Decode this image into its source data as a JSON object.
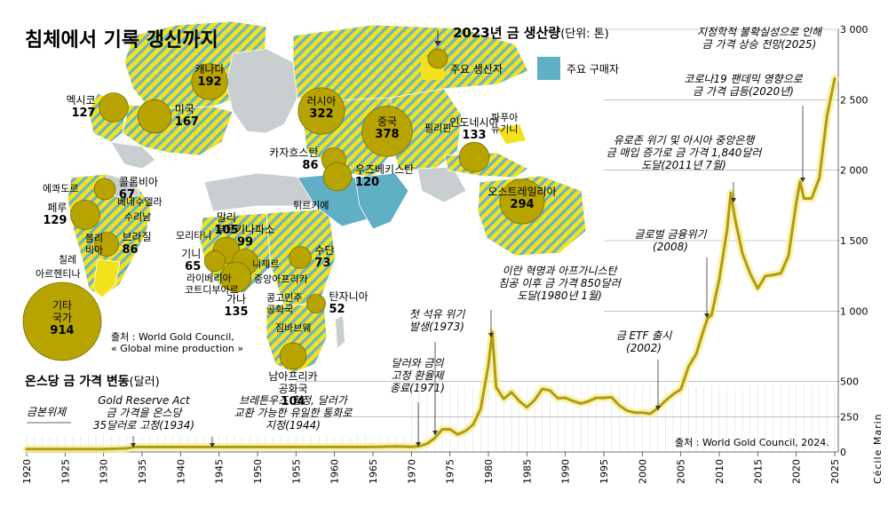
{
  "map": {
    "title": "침체에서 기록 갱신까지",
    "legend": {
      "title": "2023년 금 생산량",
      "unit": "(단위: 톤)",
      "producers": "주요 생산자",
      "buyers": "주요 구매자",
      "colors": {
        "producer": "#f2e21c",
        "producer_stripe": "#6ab3c7",
        "buyer": "#5fb0c4",
        "land": "#c9ced1",
        "bubble": "#b8a400"
      }
    },
    "source": "출처 : World Gold Council,\n« Global mine production »",
    "producers": [
      {
        "name": "캐나다",
        "value": "192"
      },
      {
        "name": "멕시코",
        "value": "127"
      },
      {
        "name": "미국",
        "value": "167"
      },
      {
        "name": "러시아",
        "value": "322"
      },
      {
        "name": "중국",
        "value": "378"
      },
      {
        "name": "카자흐스탄",
        "value": "86"
      },
      {
        "name": "우즈베키스탄",
        "value": "120"
      },
      {
        "name": "인도네시아",
        "value": "133"
      },
      {
        "name": "오스트레일리아",
        "value": "294"
      },
      {
        "name": "콜롬비아",
        "value": "67"
      },
      {
        "name": "페루",
        "value": "129"
      },
      {
        "name": "브라질",
        "value": "86"
      },
      {
        "name": "말리",
        "value": "105"
      },
      {
        "name": "부르키나파소",
        "value": "99"
      },
      {
        "name": "기니",
        "value": "65"
      },
      {
        "name": "가나",
        "value": "135"
      },
      {
        "name": "수단",
        "value": "73"
      },
      {
        "name": "탄자니아",
        "value": "52"
      },
      {
        "name": "남아프리카\n공화국",
        "value": "104"
      },
      {
        "name": "기타\n국가",
        "value": "914"
      }
    ],
    "other_labels": [
      "필리핀",
      "파푸아\n뉴기니",
      "튀르키예",
      "에콰도르",
      "베네수엘라",
      "수리남",
      "볼리\n비아",
      "칠레",
      "아르헨티나",
      "모리타니",
      "니제르",
      "라이베리아",
      "코트디부아르",
      "중앙아프리카",
      "콩고민주\n공화국",
      "짐바브웨"
    ]
  },
  "price": {
    "title": "온스당 금 가격 변동",
    "unit": "(달러)",
    "source": "출처 : World Gold Council, 2024.",
    "credit": "Cécile Marin",
    "annotations": [
      {
        "text": "금본위제"
      },
      {
        "text": "Gold Reserve Act\n금 가격을 온스당\n35달러로 고정(1934)"
      },
      {
        "text": "브레튼우즈 협정, 달러가\n교환 가능한 유일한 통화로\n지정(1944)"
      },
      {
        "text": "달러와 금의\n고정 환율제\n종료(1971)"
      },
      {
        "text": "첫 석유 위기\n발생(1973)"
      },
      {
        "text": "이란 혁명과 아프가니스탄\n침공 이후 금 가격 850달러\n도달(1980년 1월)"
      },
      {
        "text": "금 ETF 출시\n(2002)"
      },
      {
        "text": "글로벌 금융위기\n(2008)"
      },
      {
        "text": "유로존 위기 및 아시아 중앙은행\n금 매입 증가로 금 가격 1,840달러\n도달(2011년 7월)"
      },
      {
        "text": "코로나19 팬데믹 영향으로\n금 가격 급등(2020년)"
      },
      {
        "text": "지정학적 불확실성으로 인해\n금 가격 상승 전망(2025)"
      }
    ]
  },
  "chart_data": {
    "type": "line",
    "title": "온스당 금 가격 변동",
    "ylabel": "달러",
    "xlabel": "",
    "xlim": [
      1920,
      2025
    ],
    "ylim": [
      0,
      3000
    ],
    "line_color": "#b19b10",
    "x_ticks": [
      1920,
      1925,
      1930,
      1935,
      1940,
      1945,
      1950,
      1955,
      1960,
      1965,
      1970,
      1975,
      1980,
      1985,
      1990,
      1995,
      2000,
      2005,
      2010,
      2015,
      2020,
      2025
    ],
    "y_ticks": [
      0,
      250,
      500,
      1000,
      1500,
      2000,
      2500,
      3000
    ],
    "y_tick_labels": [
      "0",
      "250",
      "500",
      "1 000",
      "1 500",
      "2 000",
      "2 500",
      "3 000"
    ],
    "x": [
      1920,
      1925,
      1930,
      1933,
      1934,
      1940,
      1945,
      1950,
      1955,
      1960,
      1965,
      1968,
      1970,
      1971,
      1972,
      1973,
      1974,
      1975,
      1976,
      1977,
      1978,
      1979,
      1980,
      1980.5,
      1981,
      1982,
      1983,
      1984,
      1985,
      1986,
      1987,
      1988,
      1989,
      1990,
      1991,
      1992,
      1993,
      1994,
      1995,
      1996,
      1997,
      1998,
      1999,
      2000,
      2001,
      2002,
      2003,
      2004,
      2005,
      2006,
      2007,
      2008,
      2008.5,
      2009,
      2010,
      2011,
      2011.5,
      2012,
      2013,
      2014,
      2015,
      2016,
      2017,
      2018,
      2019,
      2020,
      2020.5,
      2021,
      2022,
      2023,
      2024,
      2025
    ],
    "y": [
      20,
      20,
      20,
      26,
      35,
      35,
      35,
      35,
      35,
      35,
      35,
      39,
      36,
      41,
      58,
      97,
      160,
      161,
      125,
      148,
      193,
      306,
      615,
      850,
      460,
      376,
      424,
      361,
      317,
      368,
      447,
      437,
      381,
      384,
      362,
      344,
      360,
      384,
      384,
      388,
      331,
      294,
      279,
      279,
      271,
      310,
      363,
      409,
      445,
      604,
      695,
      872,
      950,
      972,
      1225,
      1572,
      1840,
      1669,
      1411,
      1266,
      1160,
      1250,
      1257,
      1268,
      1393,
      1770,
      1920,
      1799,
      1800,
      1943,
      2386,
      2650
    ]
  }
}
